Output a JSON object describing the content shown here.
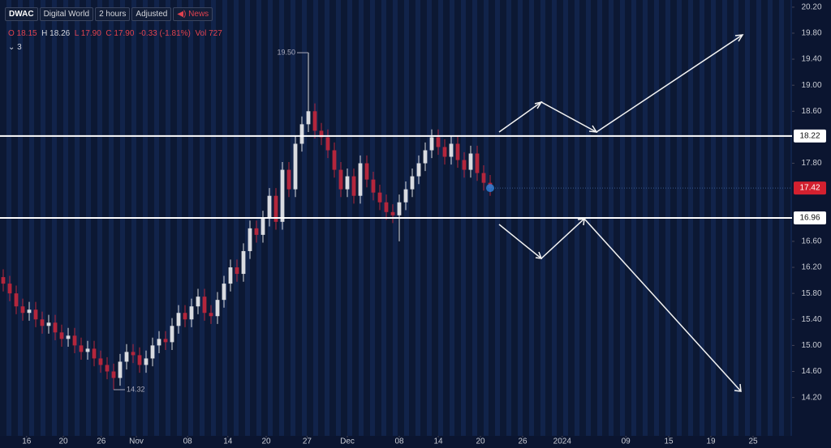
{
  "header": {
    "symbol": "DWAC",
    "name": "Digital World",
    "interval": "2 hours",
    "adjustment": "Adjusted",
    "news": "News",
    "ohlc": {
      "o_label": "O",
      "o": "18.15",
      "h_label": "H",
      "h": "18.26",
      "l_label": "L",
      "l": "17.90",
      "c_label": "C",
      "c": "17.90",
      "change": "-0.33 (-1.81%)",
      "vol_label": "Vol",
      "vol": "727"
    },
    "indicators_count": "3"
  },
  "chart_data": {
    "type": "candlestick",
    "up_color": "#d9dbe0",
    "down_color": "#b3263c",
    "level_color": "#ffffff",
    "last_color": "#d3202f",
    "xlim": [
      0,
      122
    ],
    "xticks": [
      {
        "value": 4.1,
        "label": "16"
      },
      {
        "value": 9.75,
        "label": "20"
      },
      {
        "value": 15.6,
        "label": "26"
      },
      {
        "value": 21,
        "label": "Nov"
      },
      {
        "value": 28.9,
        "label": "08"
      },
      {
        "value": 35.1,
        "label": "14"
      },
      {
        "value": 41,
        "label": "20"
      },
      {
        "value": 47.3,
        "label": "27"
      },
      {
        "value": 53.5,
        "label": "Dec"
      },
      {
        "value": 61.5,
        "label": "08"
      },
      {
        "value": 67.5,
        "label": "14"
      },
      {
        "value": 74,
        "label": "20"
      },
      {
        "value": 80.5,
        "label": "26"
      },
      {
        "value": 86.6,
        "label": "2024"
      },
      {
        "value": 96.4,
        "label": "09"
      },
      {
        "value": 103,
        "label": "15"
      },
      {
        "value": 109.5,
        "label": "19"
      },
      {
        "value": 116,
        "label": "25"
      }
    ],
    "ylim": [
      13.61,
      20.31
    ],
    "yticks": [
      {
        "value": 20.2,
        "label": "20.20"
      },
      {
        "value": 19.8,
        "label": "19.80"
      },
      {
        "value": 19.4,
        "label": "19.40"
      },
      {
        "value": 19.0,
        "label": "19.00"
      },
      {
        "value": 18.6,
        "label": "18.60"
      },
      {
        "value": 17.8,
        "label": "17.80"
      },
      {
        "value": 16.6,
        "label": "16.60"
      },
      {
        "value": 16.2,
        "label": "16.20"
      },
      {
        "value": 15.8,
        "label": "15.80"
      },
      {
        "value": 15.4,
        "label": "15.40"
      },
      {
        "value": 15.0,
        "label": "15.00"
      },
      {
        "value": 14.6,
        "label": "14.60"
      },
      {
        "value": 14.2,
        "label": "14.20"
      }
    ],
    "open": [
      16.05,
      15.95,
      15.8,
      15.6,
      15.5,
      15.55,
      15.4,
      15.3,
      15.35,
      15.2,
      15.1,
      15.15,
      15.0,
      14.9,
      14.95,
      14.8,
      14.7,
      14.6,
      14.5,
      14.75,
      14.9,
      14.85,
      14.7,
      14.8,
      15.0,
      15.1,
      15.05,
      15.3,
      15.5,
      15.4,
      15.6,
      15.75,
      15.5,
      15.45,
      15.7,
      15.95,
      16.2,
      16.1,
      16.45,
      16.8,
      16.7,
      16.95,
      17.3,
      16.9,
      17.7,
      17.4,
      18.1,
      18.4,
      18.6,
      18.3,
      18.2,
      18.0,
      17.7,
      17.4,
      17.6,
      17.3,
      17.8,
      17.55,
      17.35,
      17.2,
      17.05,
      17.0,
      17.2,
      17.4,
      17.6,
      17.8,
      18.0,
      18.2,
      18.05,
      17.9,
      18.1,
      17.85,
      17.7,
      17.95,
      17.65,
      17.5
    ],
    "high": [
      16.17,
      16.07,
      15.92,
      15.72,
      15.67,
      15.67,
      15.52,
      15.47,
      15.47,
      15.32,
      15.27,
      15.27,
      15.12,
      15.07,
      15.07,
      14.92,
      14.82,
      14.72,
      14.87,
      15.02,
      15.02,
      14.97,
      14.92,
      15.12,
      15.22,
      15.22,
      15.42,
      15.62,
      15.62,
      15.72,
      15.87,
      15.87,
      15.62,
      15.82,
      16.07,
      16.32,
      16.32,
      16.57,
      16.92,
      16.92,
      17.07,
      17.42,
      17.42,
      17.82,
      17.82,
      18.22,
      18.52,
      19.5,
      18.72,
      18.42,
      18.32,
      18.12,
      17.82,
      17.72,
      17.72,
      17.92,
      17.92,
      17.67,
      17.47,
      17.32,
      17.17,
      17.32,
      17.52,
      17.72,
      17.92,
      18.12,
      18.32,
      18.32,
      18.17,
      18.22,
      18.22,
      17.97,
      18.07,
      18.07,
      17.77,
      17.62
    ],
    "low": [
      15.83,
      15.68,
      15.48,
      15.38,
      15.38,
      15.28,
      15.18,
      15.18,
      15.08,
      14.98,
      14.98,
      14.88,
      14.78,
      14.78,
      14.68,
      14.58,
      14.48,
      14.32,
      14.38,
      14.63,
      14.73,
      14.58,
      14.58,
      14.68,
      14.88,
      14.93,
      14.93,
      15.18,
      15.28,
      15.28,
      15.48,
      15.38,
      15.33,
      15.33,
      15.58,
      15.83,
      15.98,
      15.98,
      16.33,
      16.58,
      16.58,
      16.83,
      16.78,
      16.78,
      17.28,
      17.28,
      17.98,
      18.28,
      18.18,
      18.08,
      17.88,
      17.58,
      17.28,
      17.28,
      17.18,
      17.18,
      17.43,
      17.23,
      17.08,
      16.93,
      16.88,
      16.6,
      17.08,
      17.28,
      17.48,
      17.68,
      17.88,
      17.93,
      17.78,
      17.78,
      17.73,
      17.58,
      17.58,
      17.53,
      17.38,
      17.3
    ],
    "close": [
      15.95,
      15.8,
      15.6,
      15.5,
      15.55,
      15.4,
      15.3,
      15.35,
      15.2,
      15.1,
      15.15,
      15.0,
      14.9,
      14.95,
      14.8,
      14.7,
      14.6,
      14.5,
      14.75,
      14.9,
      14.85,
      14.7,
      14.8,
      15.0,
      15.1,
      15.05,
      15.3,
      15.5,
      15.4,
      15.6,
      15.75,
      15.5,
      15.45,
      15.7,
      15.95,
      16.2,
      16.1,
      16.45,
      16.8,
      16.7,
      16.95,
      17.3,
      16.9,
      17.7,
      17.4,
      18.1,
      18.4,
      18.6,
      18.3,
      18.2,
      18.0,
      17.7,
      17.4,
      17.6,
      17.3,
      17.8,
      17.55,
      17.35,
      17.2,
      17.05,
      17.0,
      17.2,
      17.4,
      17.6,
      17.8,
      18.0,
      18.2,
      18.05,
      17.9,
      18.1,
      17.85,
      17.7,
      17.95,
      17.65,
      17.5,
      17.42
    ],
    "high_mark": {
      "value": 19.5,
      "label": "19.50"
    },
    "low_mark": 14.32,
    "levels": [
      18.22,
      16.96
    ],
    "last_price": 17.42
  }
}
